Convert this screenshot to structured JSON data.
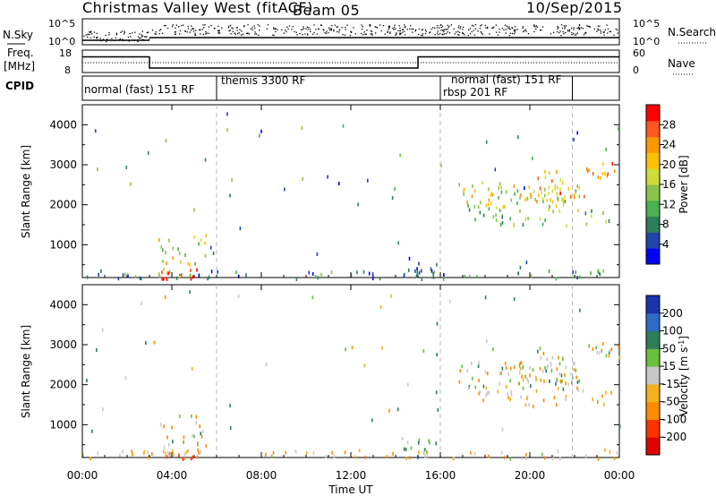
{
  "header": {
    "title": "Christmas Valley West (fitACF)",
    "beam": "Beam 05",
    "date": "10/Sep/2015"
  },
  "nsky_panel": {
    "left_label": "N.Sky",
    "right_label": "N.Search",
    "left_ticks": [
      "10^5",
      "10^0"
    ],
    "right_ticks": [
      "10^5",
      "10^0"
    ]
  },
  "freq_panel": {
    "left_label_1": "Freq.",
    "left_label_2": "[MHz]",
    "right_label": "Nave",
    "left_ticks": [
      "18",
      "8"
    ],
    "right_ticks": [
      "60",
      "0"
    ],
    "freq_steps": [
      {
        "t0": 0,
        "t1": 3,
        "f": 15
      },
      {
        "t0": 3,
        "t1": 15,
        "f": 10
      },
      {
        "t0": 15,
        "t1": 24,
        "f": 15
      }
    ]
  },
  "cpid_panel": {
    "label": "CPID",
    "modes": [
      {
        "t0": 0,
        "t1": 6,
        "text": "normal (fast) 151 RF"
      },
      {
        "t0": 6,
        "t1": 16,
        "text": "themis 3300 RF"
      },
      {
        "t0": 16,
        "t1": 24,
        "text": "rbsp 201 RF"
      },
      {
        "t0": 16,
        "t1": 21.9,
        "text": "normal (fast) 151 RF"
      }
    ],
    "dividers": [
      6,
      16,
      21.9
    ]
  },
  "range_axis": {
    "label": "Slant Range [km]",
    "ticks": [
      1000,
      2000,
      3000,
      4000
    ],
    "ylim": [
      180,
      4500
    ]
  },
  "time_axis": {
    "label": "Time UT",
    "ticks": [
      "00:00",
      "04:00",
      "08:00",
      "12:00",
      "16:00",
      "20:00",
      "00:00"
    ],
    "xlim": [
      0,
      24
    ]
  },
  "power_colorbar": {
    "label": "Power [dB]",
    "ticks": [
      "28",
      "24",
      "20",
      "16",
      "12",
      "8",
      "4"
    ],
    "colors": [
      "#0000ff",
      "#2244aa",
      "#2e7d5b",
      "#4caf50",
      "#8bc34a",
      "#cddc39",
      "#ffc107",
      "#ff9800",
      "#ff5722",
      "#ff0000"
    ]
  },
  "velocity_colorbar": {
    "label": "Velocity [m s",
    "label_sup": "-1",
    "label_end": "]",
    "ticks": [
      "200",
      "100",
      "50",
      "15",
      "-15",
      "-50",
      "-100",
      "-200"
    ],
    "colors": [
      "#1a33aa",
      "#2e6bc4",
      "#2e7d5b",
      "#6abf3f",
      "#c8c8c8",
      "#f2b21f",
      "#ff8c00",
      "#ff3300",
      "#e00000"
    ]
  },
  "chart_data": {
    "type": "heatmap",
    "title": "Christmas Valley West (fitACF)",
    "xlabel": "Time UT",
    "ylabel": "Slant Range [km]",
    "xlim": [
      0,
      24
    ],
    "ylim": [
      180,
      4500
    ],
    "panels": [
      "Power [dB]",
      "Velocity [m s-1]"
    ],
    "echo_regions": [
      {
        "t0": 0.0,
        "t1": 24.0,
        "r0": 180,
        "r1": 400,
        "density": 0.35,
        "power": 10,
        "velocity": -20
      },
      {
        "t0": 3.5,
        "t1": 5.2,
        "r0": 180,
        "r1": 450,
        "density": 0.9,
        "power": 28,
        "velocity": -60
      },
      {
        "t0": 3.3,
        "t1": 5.5,
        "r0": 450,
        "r1": 1300,
        "density": 0.35,
        "power": 18,
        "velocity": -10
      },
      {
        "t0": 14.2,
        "t1": 16.2,
        "r0": 200,
        "r1": 700,
        "density": 0.4,
        "power": 5,
        "velocity": 40
      },
      {
        "t0": 16.8,
        "t1": 22.2,
        "r0": 1900,
        "r1": 2600,
        "density": 0.55,
        "power": 18,
        "velocity": -10
      },
      {
        "t0": 19.5,
        "t1": 22.5,
        "r0": 2100,
        "r1": 2300,
        "density": 0.7,
        "power": 22,
        "velocity": -5
      },
      {
        "t0": 17.5,
        "t1": 23.8,
        "r0": 1500,
        "r1": 1900,
        "density": 0.35,
        "power": 14,
        "velocity": -30
      },
      {
        "t0": 20.3,
        "t1": 21.5,
        "r0": 2300,
        "r1": 2900,
        "density": 0.6,
        "power": 24,
        "velocity": -5
      },
      {
        "t0": 22.5,
        "t1": 24.0,
        "r0": 2700,
        "r1": 3100,
        "density": 0.7,
        "power": 24,
        "velocity": -5
      }
    ]
  }
}
